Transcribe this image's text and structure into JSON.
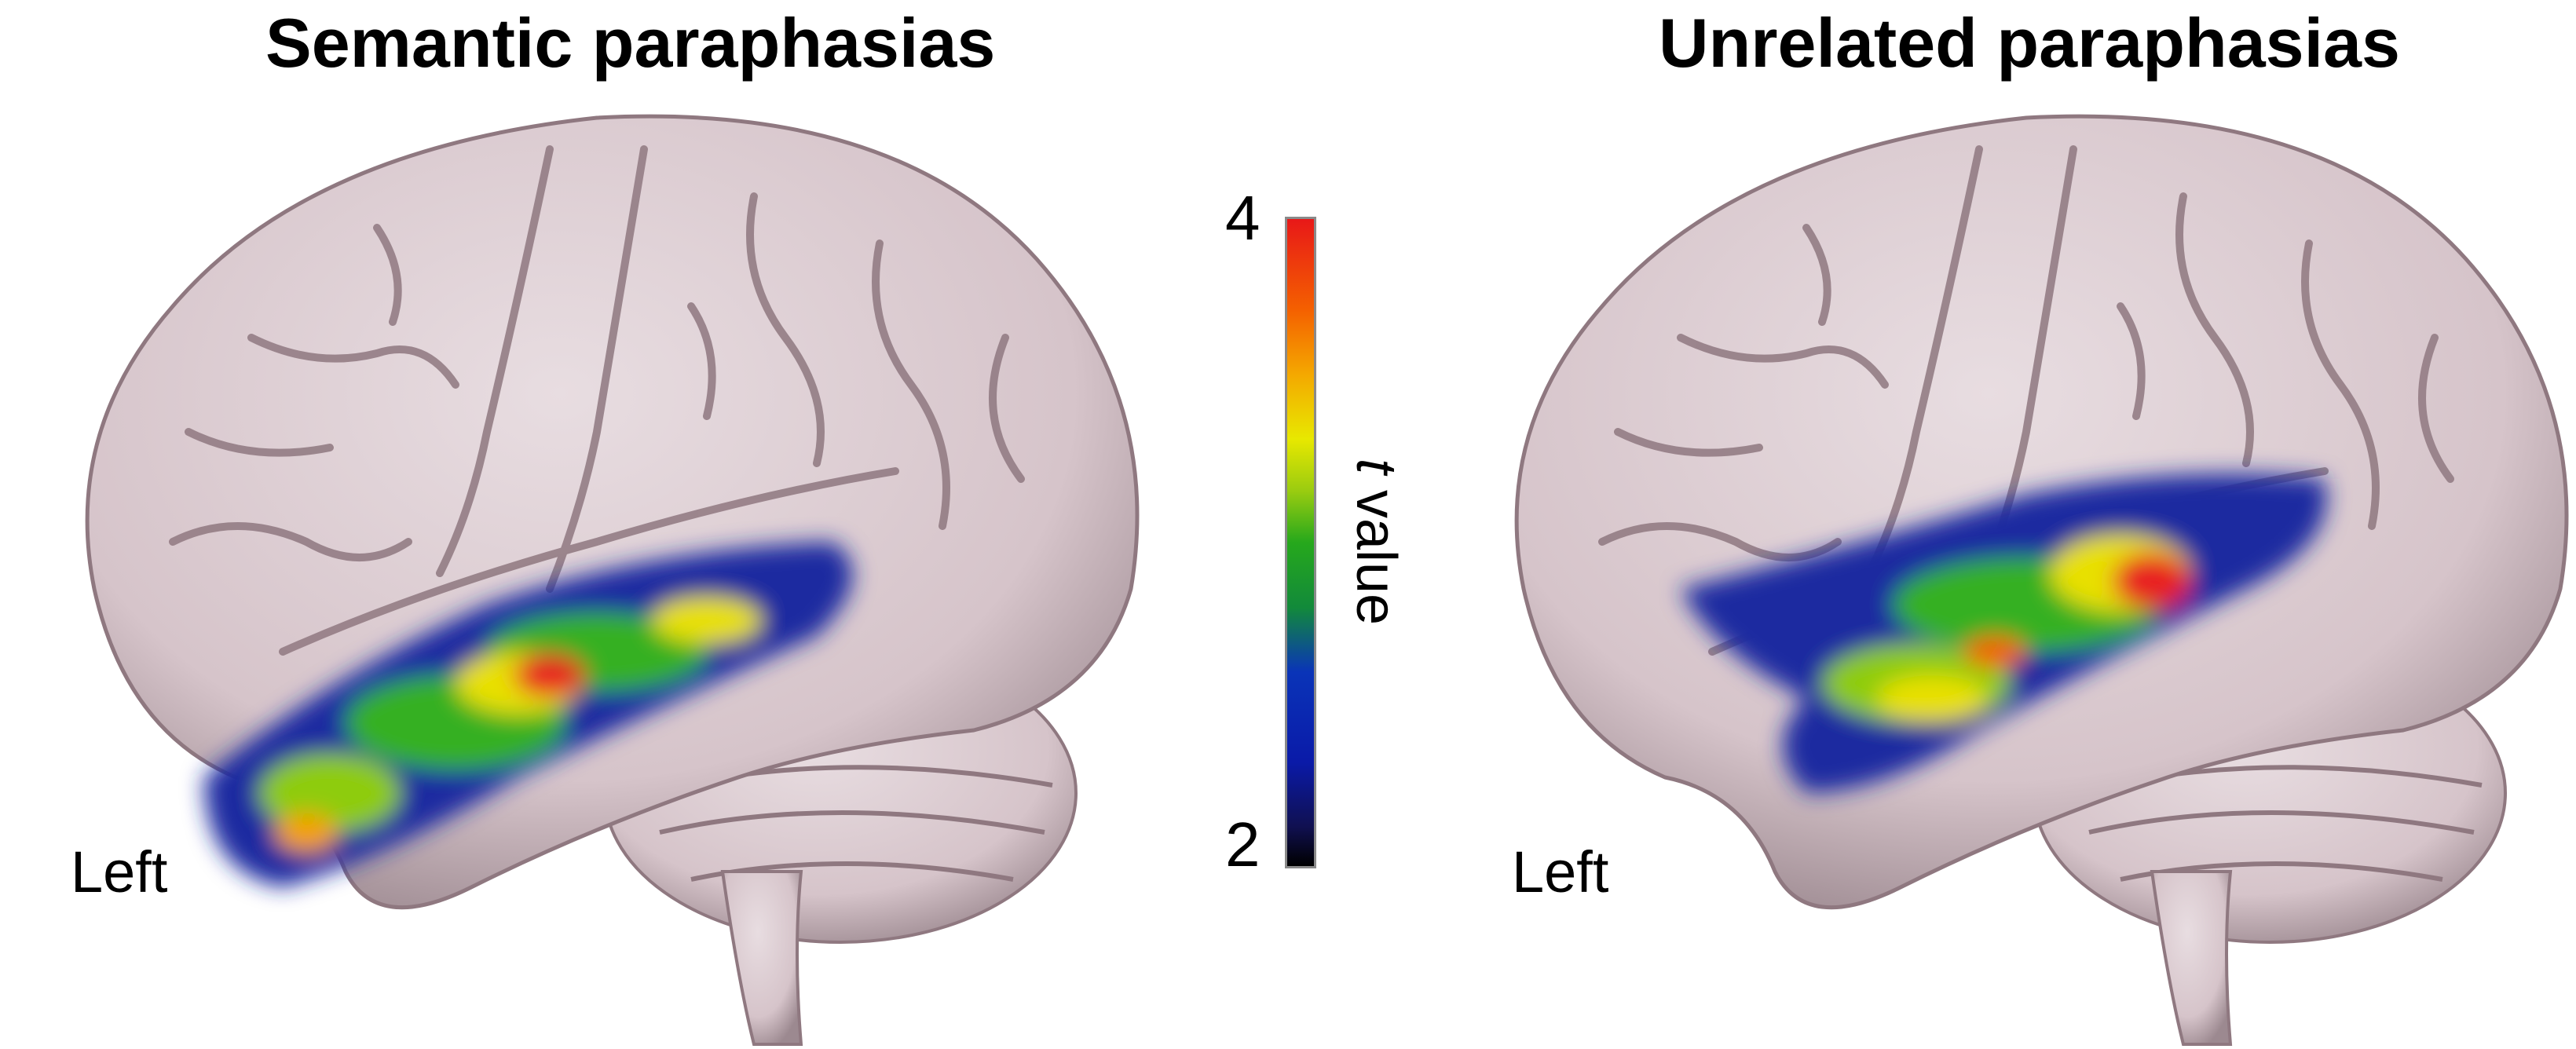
{
  "panels": [
    {
      "title": "Semantic paraphasias",
      "side_label": "Left"
    },
    {
      "title": "Unrelated paraphasias",
      "side_label": "Left"
    }
  ],
  "colorbar": {
    "max_label": "4",
    "min_label": "2",
    "label_var": "t",
    "label_rest": " value",
    "range": [
      2,
      4
    ],
    "colors": [
      "#000000",
      "#0a1aa8",
      "#128a3a",
      "#26a81c",
      "#e8e800",
      "#f46000",
      "#e81818"
    ]
  },
  "colors": {
    "brain_surface": "#d9c8ce",
    "sulcus_shadow": "#8f7880"
  }
}
